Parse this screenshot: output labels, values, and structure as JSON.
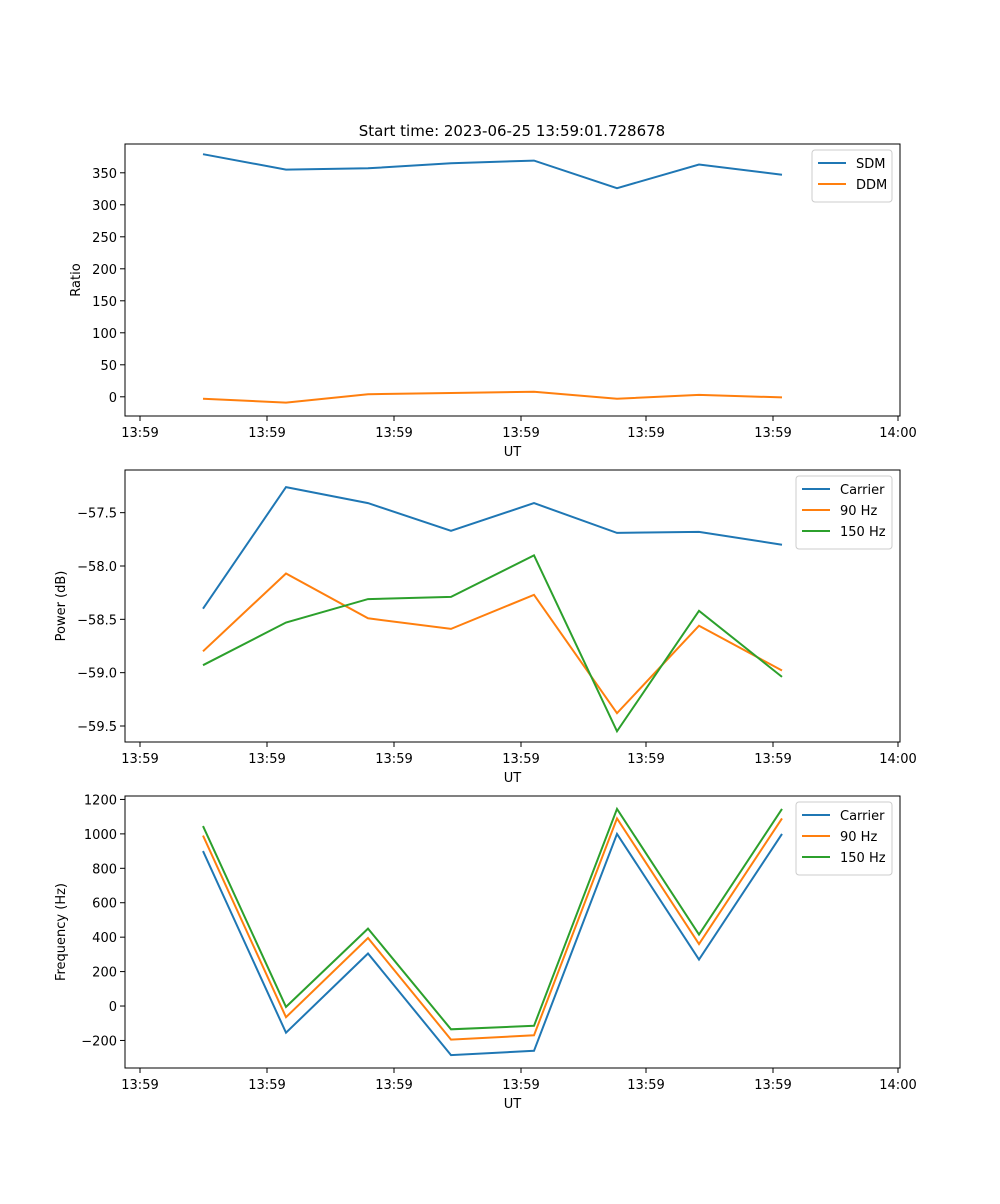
{
  "figure_title": "Start time: 2023-06-25 13:59:01.728678",
  "colors": {
    "blue": "#1f77b4",
    "orange": "#ff7f0e",
    "green": "#2ca02c"
  },
  "x_ticks": [
    "13:59",
    "13:59",
    "13:59",
    "13:59",
    "13:59",
    "13:59",
    "14:00"
  ],
  "chart_data": [
    {
      "type": "line",
      "xlabel": "UT",
      "ylabel": "Ratio",
      "ylim": [
        -30,
        395
      ],
      "yticks": [
        0,
        50,
        100,
        150,
        200,
        250,
        300,
        350
      ],
      "ytick_labels": [
        "0",
        "50",
        "100",
        "150",
        "200",
        "250",
        "300",
        "350"
      ],
      "legend_position": "top-right",
      "x": [
        1,
        2,
        3,
        4,
        5,
        6,
        7,
        8
      ],
      "series": [
        {
          "name": "SDM",
          "color": "#1f77b4",
          "values": [
            379,
            355,
            357,
            365,
            369,
            326,
            363,
            347
          ]
        },
        {
          "name": "DDM",
          "color": "#ff7f0e",
          "values": [
            -3,
            -9,
            4,
            6,
            8,
            -3,
            3,
            -1
          ]
        }
      ]
    },
    {
      "type": "line",
      "xlabel": "UT",
      "ylabel": "Power (dB)",
      "ylim": [
        -59.65,
        -57.1
      ],
      "yticks": [
        -59.5,
        -59.0,
        -58.5,
        -58.0,
        -57.5
      ],
      "ytick_labels": [
        "−59.5",
        "−59.0",
        "−58.5",
        "−58.0",
        "−57.5"
      ],
      "legend_position": "top-right",
      "x": [
        1,
        2,
        3,
        4,
        5,
        6,
        7,
        8
      ],
      "series": [
        {
          "name": "Carrier",
          "color": "#1f77b4",
          "values": [
            -58.4,
            -57.26,
            -57.41,
            -57.67,
            -57.41,
            -57.69,
            -57.68,
            -57.8
          ]
        },
        {
          "name": "90 Hz",
          "color": "#ff7f0e",
          "values": [
            -58.8,
            -58.07,
            -58.49,
            -58.59,
            -58.27,
            -59.38,
            -58.56,
            -58.98
          ]
        },
        {
          "name": "150 Hz",
          "color": "#2ca02c",
          "values": [
            -58.93,
            -58.53,
            -58.31,
            -58.29,
            -57.9,
            -59.55,
            -58.42,
            -59.04
          ]
        }
      ]
    },
    {
      "type": "line",
      "xlabel": "UT",
      "ylabel": "Frequency (Hz)",
      "ylim": [
        -360,
        1220
      ],
      "yticks": [
        -200,
        0,
        200,
        400,
        600,
        800,
        1000,
        1200
      ],
      "ytick_labels": [
        "−200",
        "0",
        "200",
        "400",
        "600",
        "800",
        "1000",
        "1200"
      ],
      "legend_position": "top-right",
      "x": [
        1,
        2,
        3,
        4,
        5,
        6,
        7,
        8
      ],
      "series": [
        {
          "name": "Carrier",
          "color": "#1f77b4",
          "values": [
            900,
            -155,
            305,
            -285,
            -260,
            1000,
            270,
            1000
          ]
        },
        {
          "name": "90 Hz",
          "color": "#ff7f0e",
          "values": [
            990,
            -65,
            395,
            -195,
            -170,
            1090,
            360,
            1090
          ]
        },
        {
          "name": "150 Hz",
          "color": "#2ca02c",
          "values": [
            1045,
            -5,
            450,
            -135,
            -115,
            1145,
            415,
            1145
          ]
        }
      ]
    }
  ]
}
